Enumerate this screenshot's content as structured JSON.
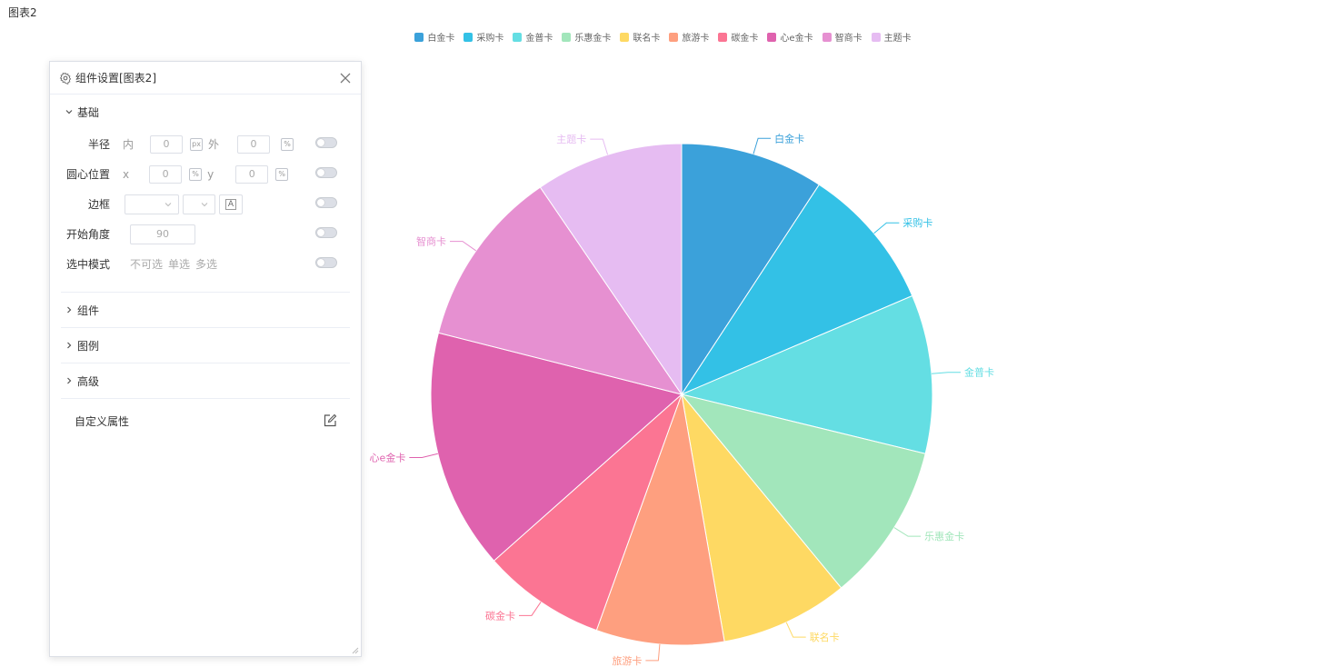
{
  "chart_data": {
    "type": "pie",
    "title": "图表2",
    "categories": [
      "白金卡",
      "采购卡",
      "金普卡",
      "乐惠金卡",
      "联名卡",
      "旅游卡",
      "碳金卡",
      "心e金卡",
      "智商卡",
      "主题卡"
    ],
    "values": [
      9.3,
      9.4,
      10.3,
      10.3,
      8.3,
      8.3,
      8.0,
      15.6,
      11.6,
      9.6
    ],
    "colors": [
      "#3ba1da",
      "#33c1e6",
      "#64dee3",
      "#a2e6bb",
      "#fed963",
      "#fe9f7f",
      "#fb7593",
      "#df62ae",
      "#e690d1",
      "#e6bcf2"
    ],
    "legend_position": "top-center",
    "start_angle": 90
  },
  "panel": {
    "title": "组件设置[图表2]",
    "sections": {
      "basic": "基础",
      "component": "组件",
      "legend": "图例",
      "advanced": "高级"
    },
    "radius": {
      "label": "半径",
      "inner_label": "内",
      "inner_value": "0",
      "outer_label": "外",
      "outer_value": "0",
      "unit_px": "px",
      "unit_pct": "%"
    },
    "center": {
      "label": "圆心位置",
      "x_label": "x",
      "x_value": "0",
      "y_label": "y",
      "y_value": "0",
      "unit_pct": "%"
    },
    "border": {
      "label": "边框",
      "font_btn": "A"
    },
    "start_angle": {
      "label": "开始角度",
      "value": "90"
    },
    "select_mode": {
      "label": "选中模式",
      "options": [
        "不可选",
        "单选",
        "多选"
      ]
    },
    "custom_props": "自定义属性"
  }
}
